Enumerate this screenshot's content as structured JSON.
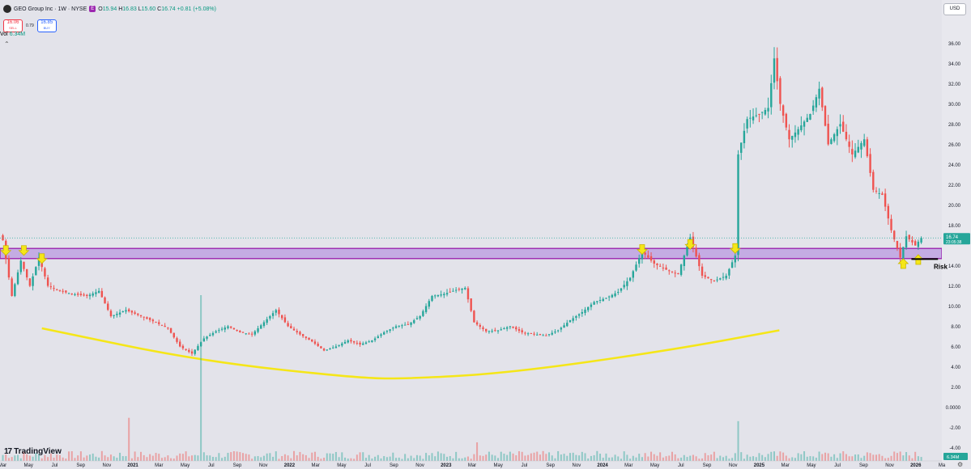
{
  "header": {
    "symbol_title": "GEO Group Inc · 1W · NYSE",
    "badge": "E",
    "open_label": "O",
    "open": "15.94",
    "high_label": "H",
    "high": "16.83",
    "low_label": "L",
    "low": "15.60",
    "close_label": "C",
    "close": "16.74",
    "change": "+0.81 (+5.08%)"
  },
  "trade": {
    "sell_price": "16.06",
    "sell_label": "SELL",
    "spread": "0.79",
    "buy_price": "16.85",
    "buy_label": "BUY"
  },
  "volume": {
    "label": "Vol",
    "value": "6.34M",
    "axis_label": "6.34M"
  },
  "currency": "USD",
  "brand": "TradingView",
  "price_tag": {
    "price": "16.74",
    "countdown": "23:05:38"
  },
  "annotation": {
    "risk": "Risk"
  },
  "colors": {
    "up": "#26a69a",
    "down": "#ef5350",
    "zone_fill": "#b99ae0",
    "zone_border": "#9c27b0",
    "curve": "#f5e618",
    "marker": "#f5e618",
    "background": "#e3e3ea"
  },
  "chart_data": {
    "type": "candlestick",
    "ylim": [
      -4.6,
      37.0
    ],
    "y_ticks": [
      "36.00",
      "34.00",
      "32.00",
      "30.00",
      "28.00",
      "26.00",
      "24.00",
      "22.00",
      "20.00",
      "18.00",
      "14.00",
      "12.00",
      "10.00",
      "8.00",
      "6.00",
      "4.00",
      "2.00",
      "0.0000",
      "-2.00",
      "-4.00"
    ],
    "x_ticks": [
      "Mar",
      "May",
      "Jul",
      "Sep",
      "Nov",
      "2021",
      "Mar",
      "May",
      "Jul",
      "Sep",
      "Nov",
      "2022",
      "Mar",
      "May",
      "Jul",
      "Sep",
      "Nov",
      "2023",
      "Mar",
      "May",
      "Jul",
      "Sep",
      "Nov",
      "2024",
      "Mar",
      "May",
      "Jul",
      "Sep",
      "Nov",
      "2025",
      "Mar",
      "May",
      "Jul",
      "Sep",
      "Nov",
      "2026",
      "Ma"
    ],
    "x_start": "2020-03",
    "x_end": "2026-03",
    "close_path": [
      [
        "2020-03-02",
        16.5
      ],
      [
        "2020-03-23",
        11.0
      ],
      [
        "2020-04-13",
        14.5
      ],
      [
        "2020-05-04",
        12.0
      ],
      [
        "2020-05-25",
        14.8
      ],
      [
        "2020-06-15",
        12.0
      ],
      [
        "2020-07-13",
        11.5
      ],
      [
        "2020-08-10",
        11.2
      ],
      [
        "2020-09-14",
        11.0
      ],
      [
        "2020-10-12",
        11.5
      ],
      [
        "2020-11-09",
        9.0
      ],
      [
        "2020-12-14",
        9.6
      ],
      [
        "2021-01-18",
        9.0
      ],
      [
        "2021-02-15",
        8.5
      ],
      [
        "2021-03-22",
        7.8
      ],
      [
        "2021-04-19",
        6.0
      ],
      [
        "2021-05-17",
        5.3
      ],
      [
        "2021-06-14",
        6.8
      ],
      [
        "2021-07-12",
        7.5
      ],
      [
        "2021-08-09",
        8.0
      ],
      [
        "2021-09-06",
        7.4
      ],
      [
        "2021-10-04",
        7.2
      ],
      [
        "2021-11-01",
        8.4
      ],
      [
        "2021-11-29",
        9.6
      ],
      [
        "2021-12-27",
        8.0
      ],
      [
        "2022-01-24",
        7.2
      ],
      [
        "2022-02-21",
        6.5
      ],
      [
        "2022-03-21",
        5.6
      ],
      [
        "2022-04-18",
        6.0
      ],
      [
        "2022-05-16",
        6.6
      ],
      [
        "2022-06-13",
        6.2
      ],
      [
        "2022-07-11",
        6.6
      ],
      [
        "2022-08-08",
        7.4
      ],
      [
        "2022-09-05",
        8.0
      ],
      [
        "2022-10-03",
        8.2
      ],
      [
        "2022-10-31",
        9.0
      ],
      [
        "2022-11-28",
        11.0
      ],
      [
        "2022-12-26",
        11.2
      ],
      [
        "2023-01-23",
        11.6
      ],
      [
        "2023-02-13",
        11.8
      ],
      [
        "2023-03-06",
        8.4
      ],
      [
        "2023-04-03",
        7.5
      ],
      [
        "2023-05-01",
        7.6
      ],
      [
        "2023-05-29",
        8.0
      ],
      [
        "2023-06-26",
        7.4
      ],
      [
        "2023-07-24",
        7.2
      ],
      [
        "2023-08-21",
        7.1
      ],
      [
        "2023-09-18",
        7.6
      ],
      [
        "2023-10-16",
        8.6
      ],
      [
        "2023-11-13",
        9.4
      ],
      [
        "2023-12-11",
        10.4
      ],
      [
        "2024-01-08",
        10.8
      ],
      [
        "2024-02-05",
        11.4
      ],
      [
        "2024-03-04",
        12.8
      ],
      [
        "2024-04-01",
        15.4
      ],
      [
        "2024-04-29",
        14.2
      ],
      [
        "2024-05-27",
        13.6
      ],
      [
        "2024-06-24",
        13.2
      ],
      [
        "2024-07-22",
        16.8
      ],
      [
        "2024-08-19",
        13.0
      ],
      [
        "2024-09-16",
        12.5
      ],
      [
        "2024-10-14",
        13.0
      ],
      [
        "2024-11-04",
        15.0
      ],
      [
        "2024-11-11",
        25.0
      ],
      [
        "2024-12-02",
        28.5
      ],
      [
        "2024-12-30",
        29.0
      ],
      [
        "2025-01-20",
        29.6
      ],
      [
        "2025-02-03",
        34.5
      ],
      [
        "2025-02-17",
        30.0
      ],
      [
        "2025-03-10",
        26.5
      ],
      [
        "2025-03-31",
        27.5
      ],
      [
        "2025-04-28",
        29.0
      ],
      [
        "2025-05-19",
        31.5
      ],
      [
        "2025-06-09",
        26.0
      ],
      [
        "2025-07-07",
        28.0
      ],
      [
        "2025-08-04",
        25.0
      ],
      [
        "2025-09-01",
        26.5
      ],
      [
        "2025-09-22",
        21.5
      ],
      [
        "2025-10-13",
        21.0
      ],
      [
        "2025-11-03",
        17.5
      ],
      [
        "2025-11-24",
        14.8
      ],
      [
        "2025-12-08",
        16.9
      ],
      [
        "2025-12-29",
        16.0
      ],
      [
        "2026-01-12",
        16.74
      ]
    ],
    "zone": {
      "low": 14.7,
      "high": 15.7
    },
    "last_price": 16.74,
    "volume_max": 25,
    "volume_spikes": [
      [
        "2021-06-07",
        25
      ],
      [
        "2020-12-21",
        6.5
      ],
      [
        "2024-11-11",
        6.0
      ],
      [
        "2023-03-13",
        2.8
      ]
    ],
    "up_markers": [
      [
        "2020-03-09",
        15.5
      ],
      [
        "2020-04-20",
        15.5
      ],
      [
        "2020-06-01",
        14.7
      ],
      [
        "2024-04-01",
        15.6
      ],
      [
        "2024-07-22",
        16.1
      ],
      [
        "2024-11-04",
        15.7
      ]
    ],
    "down_markers": [
      [
        "2025-12-01",
        14.2
      ],
      [
        "2026-01-05",
        14.6
      ]
    ],
    "trend_curve": [
      [
        "2020-06-01",
        7.8
      ],
      [
        "2021-06-01",
        4.6
      ],
      [
        "2022-06-01",
        2.9
      ],
      [
        "2022-10-01",
        2.8
      ],
      [
        "2023-06-01",
        3.4
      ],
      [
        "2024-06-01",
        5.6
      ],
      [
        "2025-02-15",
        7.6
      ]
    ],
    "risk_line": {
      "from": "2025-12-20",
      "to": "2026-02-20",
      "y": 14.65
    }
  }
}
